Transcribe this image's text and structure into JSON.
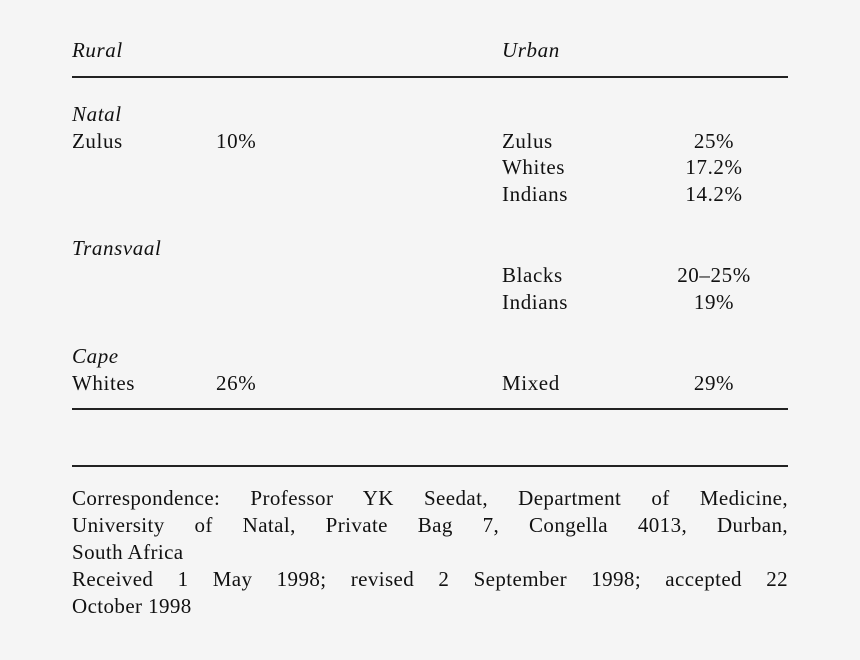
{
  "table": {
    "header": {
      "rural": "Rural",
      "urban": "Urban"
    },
    "sections": [
      {
        "name": "Natal",
        "rural": [
          {
            "group": "Zulus",
            "value": "10%"
          }
        ],
        "urban": [
          {
            "group": "Zulus",
            "value": "25%"
          },
          {
            "group": "Whites",
            "value": "17.2%"
          },
          {
            "group": "Indians",
            "value": "14.2%"
          }
        ]
      },
      {
        "name": "Transvaal",
        "rural": [],
        "urban": [
          {
            "group": "Blacks",
            "value": "20–25%"
          },
          {
            "group": "Indians",
            "value": "19%"
          }
        ]
      },
      {
        "name": "Cape",
        "rural": [
          {
            "group": "Whites",
            "value": "26%"
          }
        ],
        "urban": [
          {
            "group": "Mixed",
            "value": "29%"
          }
        ]
      }
    ]
  },
  "footer": {
    "correspondence_lines": [
      "Correspondence: Professor YK Seedat, Department of Medicine,",
      "University of Natal, Private Bag 7, Congella 4013, Durban,",
      "South Africa"
    ],
    "received_lines": [
      "Received 1 May 1998; revised 2 September 1998; accepted 22",
      "October 1998"
    ]
  }
}
